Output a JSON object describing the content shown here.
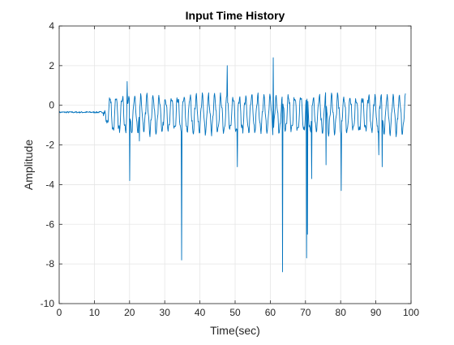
{
  "figure": {
    "background": "#ffffff"
  },
  "chart_data": {
    "type": "line",
    "title": "Input Time History",
    "xlabel": "Time(sec)",
    "ylabel": "Amplitude",
    "xlim": [
      0,
      100
    ],
    "ylim": [
      -10,
      4
    ],
    "xticks": [
      0,
      10,
      20,
      30,
      40,
      50,
      60,
      70,
      80,
      90,
      100
    ],
    "yticks": [
      -10,
      -8,
      -6,
      -4,
      -2,
      0,
      2,
      4
    ],
    "grid": true,
    "line_color": "#0072bd",
    "series": [
      {
        "x_range": [
          0,
          98.5
        ],
        "quiet_until": 12.5,
        "quiet_level": -0.35,
        "oscillation_period": 1.75,
        "oscillation_amplitude": 0.85,
        "oscillation_center": -0.45,
        "spikes": [
          {
            "x": 19.3,
            "y": 1.2
          },
          {
            "x": 20.0,
            "y": -3.8
          },
          {
            "x": 22.8,
            "y": -1.8
          },
          {
            "x": 34.8,
            "y": -7.8
          },
          {
            "x": 47.8,
            "y": 2.0
          },
          {
            "x": 50.6,
            "y": -3.1
          },
          {
            "x": 60.8,
            "y": 2.4
          },
          {
            "x": 63.5,
            "y": -8.4
          },
          {
            "x": 70.3,
            "y": -7.7
          },
          {
            "x": 70.6,
            "y": -6.5
          },
          {
            "x": 71.8,
            "y": -3.7
          },
          {
            "x": 75.8,
            "y": -3.0
          },
          {
            "x": 80.2,
            "y": -4.3
          },
          {
            "x": 90.8,
            "y": -2.5
          },
          {
            "x": 91.8,
            "y": -3.1
          }
        ]
      }
    ]
  }
}
